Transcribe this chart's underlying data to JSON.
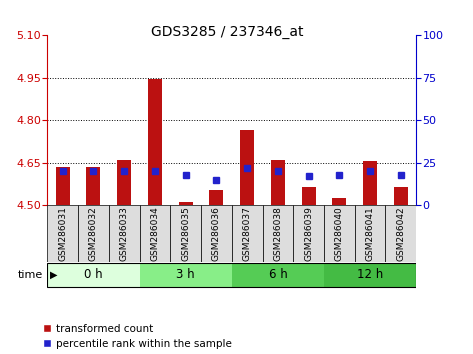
{
  "title": "GDS3285 / 237346_at",
  "samples": [
    "GSM286031",
    "GSM286032",
    "GSM286033",
    "GSM286034",
    "GSM286035",
    "GSM286036",
    "GSM286037",
    "GSM286038",
    "GSM286039",
    "GSM286040",
    "GSM286041",
    "GSM286042"
  ],
  "red_values": [
    4.635,
    4.635,
    4.66,
    4.945,
    4.51,
    4.555,
    4.765,
    4.66,
    4.565,
    4.525,
    4.655,
    4.565
  ],
  "blue_values": [
    20,
    20,
    20,
    20,
    18,
    15,
    22,
    20,
    17,
    18,
    20,
    18
  ],
  "ylim": [
    4.5,
    5.1
  ],
  "y2lim": [
    0,
    100
  ],
  "yticks": [
    4.5,
    4.65,
    4.8,
    4.95,
    5.1
  ],
  "y2ticks": [
    0,
    25,
    50,
    75,
    100
  ],
  "bar_color": "#bb1111",
  "square_color": "#2222cc",
  "base_value": 4.5,
  "groups": [
    {
      "label": "0 h",
      "start": 0,
      "end": 3,
      "color": "#ddffdd"
    },
    {
      "label": "3 h",
      "start": 3,
      "end": 6,
      "color": "#88ee88"
    },
    {
      "label": "6 h",
      "start": 6,
      "end": 9,
      "color": "#55cc55"
    },
    {
      "label": "12 h",
      "start": 9,
      "end": 12,
      "color": "#44bb44"
    }
  ],
  "label_color_left": "#cc0000",
  "label_color_right": "#0000cc",
  "grid_color": "#000000",
  "background_color": "#ffffff",
  "bar_width": 0.45,
  "sample_box_color": "#dddddd",
  "figure_bg": "#ffffff"
}
